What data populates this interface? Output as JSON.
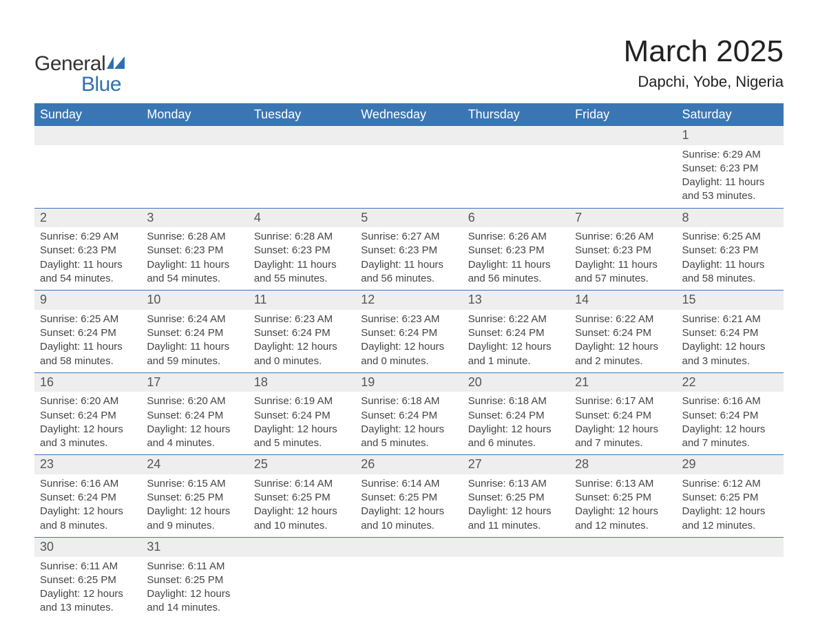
{
  "logo": {
    "word1": "General",
    "word2": "Blue",
    "flag_color": "#2f6fb0"
  },
  "header": {
    "month_title": "March 2025",
    "location": "Dapchi, Yobe, Nigeria"
  },
  "colors": {
    "header_bg": "#3a76b4",
    "header_text": "#ffffff",
    "daynum_bg": "#eeeeee",
    "text": "#444444",
    "border": "#3a76b4",
    "background": "#ffffff"
  },
  "fonts": {
    "title_size": 44,
    "location_size": 22,
    "dayhead_size": 18,
    "daynum_size": 18,
    "body_size": 15
  },
  "day_headers": [
    "Sunday",
    "Monday",
    "Tuesday",
    "Wednesday",
    "Thursday",
    "Friday",
    "Saturday"
  ],
  "weeks": [
    [
      {
        "empty": true
      },
      {
        "empty": true
      },
      {
        "empty": true
      },
      {
        "empty": true
      },
      {
        "empty": true
      },
      {
        "empty": true
      },
      {
        "day": "1",
        "sunrise": "Sunrise: 6:29 AM",
        "sunset": "Sunset: 6:23 PM",
        "daylight": "Daylight: 11 hours and 53 minutes."
      }
    ],
    [
      {
        "day": "2",
        "sunrise": "Sunrise: 6:29 AM",
        "sunset": "Sunset: 6:23 PM",
        "daylight": "Daylight: 11 hours and 54 minutes."
      },
      {
        "day": "3",
        "sunrise": "Sunrise: 6:28 AM",
        "sunset": "Sunset: 6:23 PM",
        "daylight": "Daylight: 11 hours and 54 minutes."
      },
      {
        "day": "4",
        "sunrise": "Sunrise: 6:28 AM",
        "sunset": "Sunset: 6:23 PM",
        "daylight": "Daylight: 11 hours and 55 minutes."
      },
      {
        "day": "5",
        "sunrise": "Sunrise: 6:27 AM",
        "sunset": "Sunset: 6:23 PM",
        "daylight": "Daylight: 11 hours and 56 minutes."
      },
      {
        "day": "6",
        "sunrise": "Sunrise: 6:26 AM",
        "sunset": "Sunset: 6:23 PM",
        "daylight": "Daylight: 11 hours and 56 minutes."
      },
      {
        "day": "7",
        "sunrise": "Sunrise: 6:26 AM",
        "sunset": "Sunset: 6:23 PM",
        "daylight": "Daylight: 11 hours and 57 minutes."
      },
      {
        "day": "8",
        "sunrise": "Sunrise: 6:25 AM",
        "sunset": "Sunset: 6:23 PM",
        "daylight": "Daylight: 11 hours and 58 minutes."
      }
    ],
    [
      {
        "day": "9",
        "sunrise": "Sunrise: 6:25 AM",
        "sunset": "Sunset: 6:24 PM",
        "daylight": "Daylight: 11 hours and 58 minutes."
      },
      {
        "day": "10",
        "sunrise": "Sunrise: 6:24 AM",
        "sunset": "Sunset: 6:24 PM",
        "daylight": "Daylight: 11 hours and 59 minutes."
      },
      {
        "day": "11",
        "sunrise": "Sunrise: 6:23 AM",
        "sunset": "Sunset: 6:24 PM",
        "daylight": "Daylight: 12 hours and 0 minutes."
      },
      {
        "day": "12",
        "sunrise": "Sunrise: 6:23 AM",
        "sunset": "Sunset: 6:24 PM",
        "daylight": "Daylight: 12 hours and 0 minutes."
      },
      {
        "day": "13",
        "sunrise": "Sunrise: 6:22 AM",
        "sunset": "Sunset: 6:24 PM",
        "daylight": "Daylight: 12 hours and 1 minute."
      },
      {
        "day": "14",
        "sunrise": "Sunrise: 6:22 AM",
        "sunset": "Sunset: 6:24 PM",
        "daylight": "Daylight: 12 hours and 2 minutes."
      },
      {
        "day": "15",
        "sunrise": "Sunrise: 6:21 AM",
        "sunset": "Sunset: 6:24 PM",
        "daylight": "Daylight: 12 hours and 3 minutes."
      }
    ],
    [
      {
        "day": "16",
        "sunrise": "Sunrise: 6:20 AM",
        "sunset": "Sunset: 6:24 PM",
        "daylight": "Daylight: 12 hours and 3 minutes."
      },
      {
        "day": "17",
        "sunrise": "Sunrise: 6:20 AM",
        "sunset": "Sunset: 6:24 PM",
        "daylight": "Daylight: 12 hours and 4 minutes."
      },
      {
        "day": "18",
        "sunrise": "Sunrise: 6:19 AM",
        "sunset": "Sunset: 6:24 PM",
        "daylight": "Daylight: 12 hours and 5 minutes."
      },
      {
        "day": "19",
        "sunrise": "Sunrise: 6:18 AM",
        "sunset": "Sunset: 6:24 PM",
        "daylight": "Daylight: 12 hours and 5 minutes."
      },
      {
        "day": "20",
        "sunrise": "Sunrise: 6:18 AM",
        "sunset": "Sunset: 6:24 PM",
        "daylight": "Daylight: 12 hours and 6 minutes."
      },
      {
        "day": "21",
        "sunrise": "Sunrise: 6:17 AM",
        "sunset": "Sunset: 6:24 PM",
        "daylight": "Daylight: 12 hours and 7 minutes."
      },
      {
        "day": "22",
        "sunrise": "Sunrise: 6:16 AM",
        "sunset": "Sunset: 6:24 PM",
        "daylight": "Daylight: 12 hours and 7 minutes."
      }
    ],
    [
      {
        "day": "23",
        "sunrise": "Sunrise: 6:16 AM",
        "sunset": "Sunset: 6:24 PM",
        "daylight": "Daylight: 12 hours and 8 minutes."
      },
      {
        "day": "24",
        "sunrise": "Sunrise: 6:15 AM",
        "sunset": "Sunset: 6:25 PM",
        "daylight": "Daylight: 12 hours and 9 minutes."
      },
      {
        "day": "25",
        "sunrise": "Sunrise: 6:14 AM",
        "sunset": "Sunset: 6:25 PM",
        "daylight": "Daylight: 12 hours and 10 minutes."
      },
      {
        "day": "26",
        "sunrise": "Sunrise: 6:14 AM",
        "sunset": "Sunset: 6:25 PM",
        "daylight": "Daylight: 12 hours and 10 minutes."
      },
      {
        "day": "27",
        "sunrise": "Sunrise: 6:13 AM",
        "sunset": "Sunset: 6:25 PM",
        "daylight": "Daylight: 12 hours and 11 minutes."
      },
      {
        "day": "28",
        "sunrise": "Sunrise: 6:13 AM",
        "sunset": "Sunset: 6:25 PM",
        "daylight": "Daylight: 12 hours and 12 minutes."
      },
      {
        "day": "29",
        "sunrise": "Sunrise: 6:12 AM",
        "sunset": "Sunset: 6:25 PM",
        "daylight": "Daylight: 12 hours and 12 minutes."
      }
    ],
    [
      {
        "day": "30",
        "sunrise": "Sunrise: 6:11 AM",
        "sunset": "Sunset: 6:25 PM",
        "daylight": "Daylight: 12 hours and 13 minutes."
      },
      {
        "day": "31",
        "sunrise": "Sunrise: 6:11 AM",
        "sunset": "Sunset: 6:25 PM",
        "daylight": "Daylight: 12 hours and 14 minutes."
      },
      {
        "empty": true
      },
      {
        "empty": true
      },
      {
        "empty": true
      },
      {
        "empty": true
      },
      {
        "empty": true
      }
    ]
  ]
}
